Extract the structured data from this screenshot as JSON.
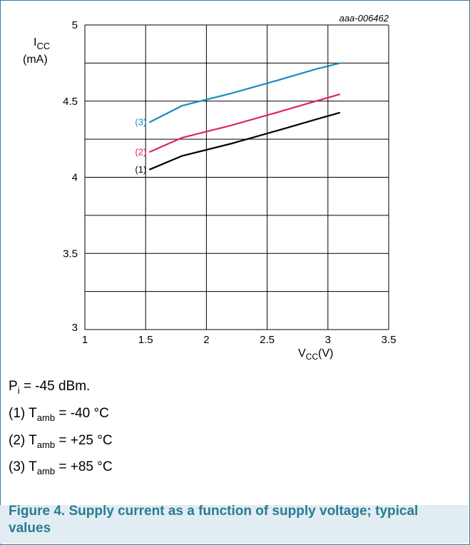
{
  "figure_id": "aaa-006462",
  "y_axis": {
    "symbol": "I",
    "subscript": "CC",
    "unit": "(mA)"
  },
  "x_axis": {
    "symbol": "V",
    "subscript": "CC",
    "unit": "(V)"
  },
  "notes": {
    "power": {
      "prefix": "P",
      "sub": "i",
      "suffix": " = -45 dBm."
    },
    "conditions": [
      {
        "id": "(1)",
        "prefix": " T",
        "sub": "amb",
        "suffix": " = -40 °C"
      },
      {
        "id": "(2)",
        "prefix": " T",
        "sub": "amb",
        "suffix": " = +25 °C"
      },
      {
        "id": "(3)",
        "prefix": " T",
        "sub": "amb",
        "suffix": " = +85 °C"
      }
    ]
  },
  "caption": "Figure 4.  Supply current as a function of supply voltage; typical values",
  "chart_data": {
    "type": "line",
    "xlim": [
      1,
      3.5
    ],
    "ylim": [
      3,
      5
    ],
    "xticks": [
      1,
      1.5,
      2,
      2.5,
      3,
      3.5
    ],
    "yticks": [
      3,
      3.5,
      4,
      4.5,
      5
    ],
    "ytick_labels": [
      "3",
      "3.5",
      "4",
      "4.5",
      "5"
    ],
    "xtick_labels": [
      "1",
      "1.5",
      "2",
      "2.5",
      "3",
      "3.5"
    ],
    "grid": true,
    "series": [
      {
        "name": "(1)",
        "color": "#000000",
        "x": [
          1.53,
          1.8,
          2.2,
          2.6,
          2.9,
          3.1
        ],
        "y": [
          4.05,
          4.14,
          4.22,
          4.31,
          4.38,
          4.425
        ]
      },
      {
        "name": "(2)",
        "color": "#e0245e",
        "x": [
          1.53,
          1.8,
          2.2,
          2.6,
          2.9,
          3.1
        ],
        "y": [
          4.165,
          4.26,
          4.34,
          4.43,
          4.5,
          4.545
        ]
      },
      {
        "name": "(3)",
        "color": "#1a8bbf",
        "x": [
          1.53,
          1.8,
          2.2,
          2.6,
          2.9,
          3.1
        ],
        "y": [
          4.36,
          4.47,
          4.55,
          4.64,
          4.71,
          4.75
        ]
      }
    ]
  }
}
